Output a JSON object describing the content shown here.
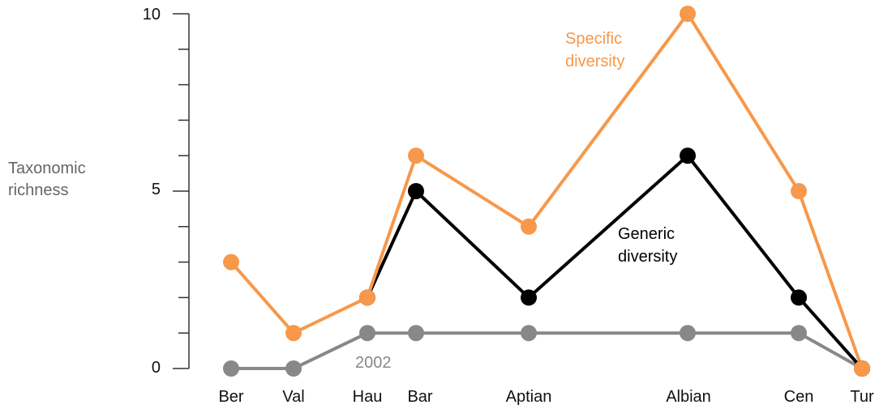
{
  "chart_data": {
    "type": "line",
    "ylabel": [
      "Taxonomic",
      "richness"
    ],
    "xlabel": "",
    "ylim": [
      0,
      10
    ],
    "yticks": [
      0,
      5,
      10
    ],
    "categories": [
      "Ber",
      "Val",
      "Hau",
      "Bar",
      "Aptian",
      "Albian",
      "Cen",
      "Tur"
    ],
    "series": [
      {
        "name": "2002",
        "color": "#888888",
        "values": [
          0,
          0,
          1,
          1,
          1,
          1,
          1,
          0
        ]
      },
      {
        "name": "Generic diversity",
        "color": "#000000",
        "values": [
          null,
          null,
          2,
          5,
          2,
          6,
          2,
          0
        ]
      },
      {
        "name": "Specific diversity",
        "color": "#f7984a",
        "values": [
          3,
          1,
          2,
          6,
          4,
          10,
          5,
          0
        ]
      }
    ],
    "annotations": {
      "specific": [
        "Specific",
        "diversity"
      ],
      "generic": [
        "Generic",
        "diversity"
      ],
      "year": "2002"
    },
    "grid": false,
    "legend": "none"
  }
}
